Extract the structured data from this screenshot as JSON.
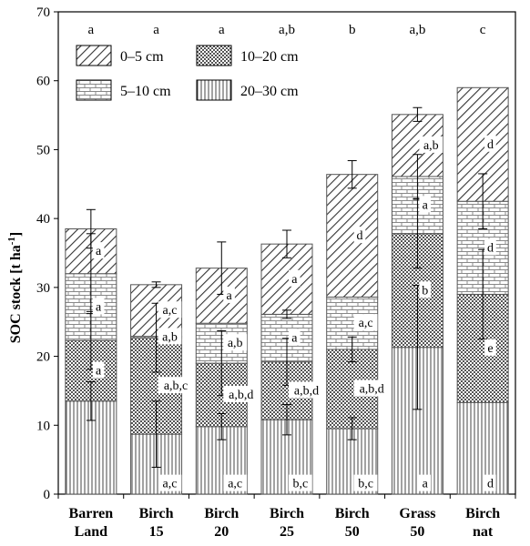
{
  "chart_data": {
    "type": "bar",
    "stacked": true,
    "title": "",
    "xlabel": "",
    "ylabel": "SOC stock [t ha",
    "ylabel_sup": "-1",
    "ylabel_close": "]",
    "ylim": [
      0,
      70
    ],
    "yticks": [
      0,
      10,
      20,
      30,
      40,
      50,
      60,
      70
    ],
    "grid": false,
    "legend_position": "top-left",
    "categories": [
      [
        "Barren",
        "Land"
      ],
      [
        "Birch",
        "15"
      ],
      [
        "Birch",
        "20"
      ],
      [
        "Birch",
        "25"
      ],
      [
        "Birch",
        "50"
      ],
      [
        "Grass",
        "50"
      ],
      [
        "Birch",
        "nat"
      ]
    ],
    "total_significance": [
      "a",
      "a",
      "a",
      "a,b",
      "b",
      "a,b",
      "c"
    ],
    "series": [
      {
        "name": "20–30 cm",
        "pattern": "vertical-lines",
        "values": [
          13.5,
          8.7,
          9.8,
          10.8,
          9.5,
          21.3,
          13.3
        ],
        "errors": [
          2.8,
          4.8,
          1.9,
          2.2,
          1.6,
          9.0,
          0.0
        ],
        "labels": [
          "",
          "a,c",
          "a,c",
          "b,c",
          "b,c",
          "a",
          "d"
        ]
      },
      {
        "name": "10–20 cm",
        "pattern": "checker",
        "values": [
          8.8,
          14.0,
          9.2,
          8.4,
          11.5,
          16.5,
          15.7
        ],
        "errors": [
          4.2,
          5.0,
          4.7,
          3.4,
          1.8,
          5.0,
          6.5
        ],
        "labels": [
          "a",
          "a,b,c",
          "a,b,d",
          "a,b,d",
          "a,b,d",
          "b",
          "e"
        ]
      },
      {
        "name": "5–10 cm",
        "pattern": "brick",
        "values": [
          9.7,
          0.2,
          5.8,
          6.9,
          7.6,
          8.3,
          13.5
        ],
        "errors": [
          5.8,
          0.0,
          0.0,
          0.6,
          0.0,
          3.2,
          4.0
        ],
        "labels": [
          "a",
          "a,b",
          "a,b",
          "a",
          "a,c",
          "a",
          "d"
        ]
      },
      {
        "name": "0–5 cm",
        "pattern": "diagonal",
        "values": [
          6.5,
          7.5,
          8.0,
          10.2,
          17.8,
          9.0,
          16.5
        ],
        "errors": [
          2.8,
          0.4,
          3.8,
          2.0,
          2.0,
          1.0,
          0.0
        ],
        "labels": [
          "a",
          "a,c",
          "a",
          "a",
          "d",
          "a,b",
          "d"
        ]
      }
    ],
    "legend": [
      {
        "name": "0–5 cm",
        "pattern": "diagonal"
      },
      {
        "name": "10–20 cm",
        "pattern": "checker"
      },
      {
        "name": "5–10 cm",
        "pattern": "brick"
      },
      {
        "name": "20–30 cm",
        "pattern": "vertical-lines"
      }
    ]
  }
}
